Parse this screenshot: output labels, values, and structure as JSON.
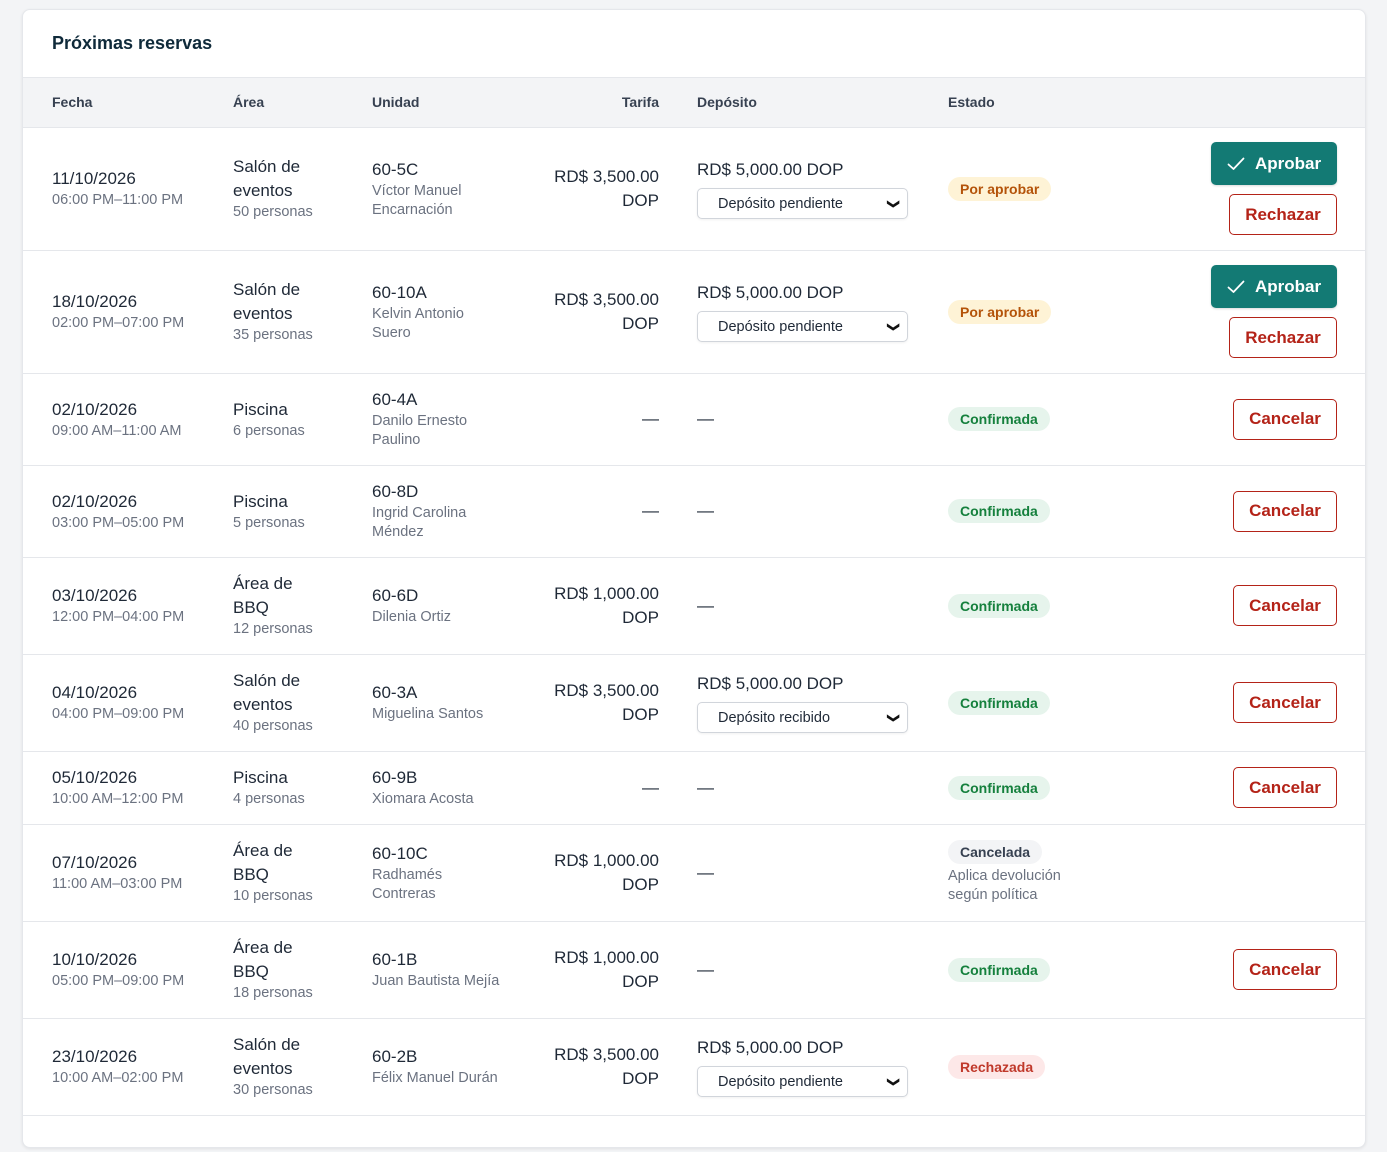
{
  "title": "Próximas reservas",
  "columns": {
    "fecha": "Fecha",
    "area": "Área",
    "unidad": "Unidad",
    "tarifa": "Tarifa",
    "deposito": "Depósito",
    "estado": "Estado"
  },
  "labels": {
    "aprobar": "Aprobar",
    "rechazar": "Rechazar",
    "cancelar": "Cancelar",
    "dash": "—"
  },
  "colors": {
    "primary": "#137a74",
    "danger": "#b42318",
    "pending": "#b45309",
    "confirmed": "#15803d"
  },
  "rows": [
    {
      "date": "11/10/2026",
      "time": "06:00 PM–11:00 PM",
      "area": [
        "Salón de",
        "eventos"
      ],
      "people": "50 personas",
      "unit": "60-5C",
      "resident": [
        "Víctor Manuel",
        "Encarnación"
      ],
      "rate": [
        "RD$ 3,500.00",
        "DOP"
      ],
      "deposit": "RD$ 5,000.00 DOP",
      "deposit_status": "Depósito pendiente",
      "status": "Por aprobar",
      "note": "",
      "actions": "approve"
    },
    {
      "date": "18/10/2026",
      "time": "02:00 PM–07:00 PM",
      "area": [
        "Salón de",
        "eventos"
      ],
      "people": "35 personas",
      "unit": "60-10A",
      "resident": [
        "Kelvin Antonio",
        "Suero"
      ],
      "rate": [
        "RD$ 3,500.00",
        "DOP"
      ],
      "deposit": "RD$ 5,000.00 DOP",
      "deposit_status": "Depósito pendiente",
      "status": "Por aprobar",
      "note": "",
      "actions": "approve"
    },
    {
      "date": "02/10/2026",
      "time": "09:00 AM–11:00 AM",
      "area": [
        "Piscina"
      ],
      "people": "6 personas",
      "unit": "60-4A",
      "resident": [
        "Danilo Ernesto",
        "Paulino"
      ],
      "rate": [
        "—"
      ],
      "deposit": "",
      "deposit_status": "",
      "status": "Confirmada",
      "note": "",
      "actions": "cancel"
    },
    {
      "date": "02/10/2026",
      "time": "03:00 PM–05:00 PM",
      "area": [
        "Piscina"
      ],
      "people": "5 personas",
      "unit": "60-8D",
      "resident": [
        "Ingrid Carolina",
        "Méndez"
      ],
      "rate": [
        "—"
      ],
      "deposit": "",
      "deposit_status": "",
      "status": "Confirmada",
      "note": "",
      "actions": "cancel"
    },
    {
      "date": "03/10/2026",
      "time": "12:00 PM–04:00 PM",
      "area": [
        "Área de",
        "BBQ"
      ],
      "people": "12 personas",
      "unit": "60-6D",
      "resident": [
        "Dilenia Ortiz"
      ],
      "rate": [
        "RD$ 1,000.00",
        "DOP"
      ],
      "deposit": "",
      "deposit_status": "",
      "status": "Confirmada",
      "note": "",
      "actions": "cancel"
    },
    {
      "date": "04/10/2026",
      "time": "04:00 PM–09:00 PM",
      "area": [
        "Salón de",
        "eventos"
      ],
      "people": "40 personas",
      "unit": "60-3A",
      "resident": [
        "Miguelina Santos"
      ],
      "rate": [
        "RD$ 3,500.00",
        "DOP"
      ],
      "deposit": "RD$ 5,000.00 DOP",
      "deposit_status": "Depósito recibido",
      "status": "Confirmada",
      "note": "",
      "actions": "cancel"
    },
    {
      "date": "05/10/2026",
      "time": "10:00 AM–12:00 PM",
      "area": [
        "Piscina"
      ],
      "people": "4 personas",
      "unit": "60-9B",
      "resident": [
        "Xiomara Acosta"
      ],
      "rate": [
        "—"
      ],
      "deposit": "",
      "deposit_status": "",
      "status": "Confirmada",
      "note": "",
      "actions": "cancel"
    },
    {
      "date": "07/10/2026",
      "time": "11:00 AM–03:00 PM",
      "area": [
        "Área de",
        "BBQ"
      ],
      "people": "10 personas",
      "unit": "60-10C",
      "resident": [
        "Radhamés",
        "Contreras"
      ],
      "rate": [
        "RD$ 1,000.00",
        "DOP"
      ],
      "deposit": "",
      "deposit_status": "",
      "status": "Cancelada",
      "note": "Aplica devolución según política",
      "actions": "none"
    },
    {
      "date": "10/10/2026",
      "time": "05:00 PM–09:00 PM",
      "area": [
        "Área de",
        "BBQ"
      ],
      "people": "18 personas",
      "unit": "60-1B",
      "resident": [
        "Juan Bautista Mejía"
      ],
      "rate": [
        "RD$ 1,000.00",
        "DOP"
      ],
      "deposit": "",
      "deposit_status": "",
      "status": "Confirmada",
      "note": "",
      "actions": "cancel"
    },
    {
      "date": "23/10/2026",
      "time": "10:00 AM–02:00 PM",
      "area": [
        "Salón de",
        "eventos"
      ],
      "people": "30 personas",
      "unit": "60-2B",
      "resident": [
        "Félix Manuel Durán"
      ],
      "rate": [
        "RD$ 3,500.00",
        "DOP"
      ],
      "deposit": "RD$ 5,000.00 DOP",
      "deposit_status": "Depósito pendiente",
      "status": "Rechazada",
      "note": "",
      "actions": "none"
    }
  ]
}
